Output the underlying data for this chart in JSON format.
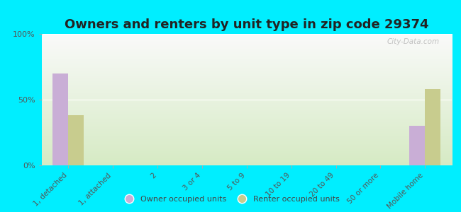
{
  "title": "Owners and renters by unit type in zip code 29374",
  "categories": [
    "1, detached",
    "1, attached",
    "2",
    "3 or 4",
    "5 to 9",
    "10 to 19",
    "20 to 49",
    "50 or more",
    "Mobile home"
  ],
  "owner_values": [
    70,
    0,
    0,
    0,
    0,
    0,
    0,
    0,
    30
  ],
  "renter_values": [
    38,
    0,
    0,
    0,
    0,
    0,
    0,
    0,
    58
  ],
  "owner_color": "#c9aed6",
  "renter_color": "#c8cc8e",
  "background_outer": "#00eeff",
  "ylim": [
    0,
    100
  ],
  "yticks": [
    0,
    50,
    100
  ],
  "ytick_labels": [
    "0%",
    "50%",
    "100%"
  ],
  "bar_width": 0.35,
  "legend_owner": "Owner occupied units",
  "legend_renter": "Renter occupied units",
  "title_fontsize": 13,
  "watermark": "City-Data.com"
}
